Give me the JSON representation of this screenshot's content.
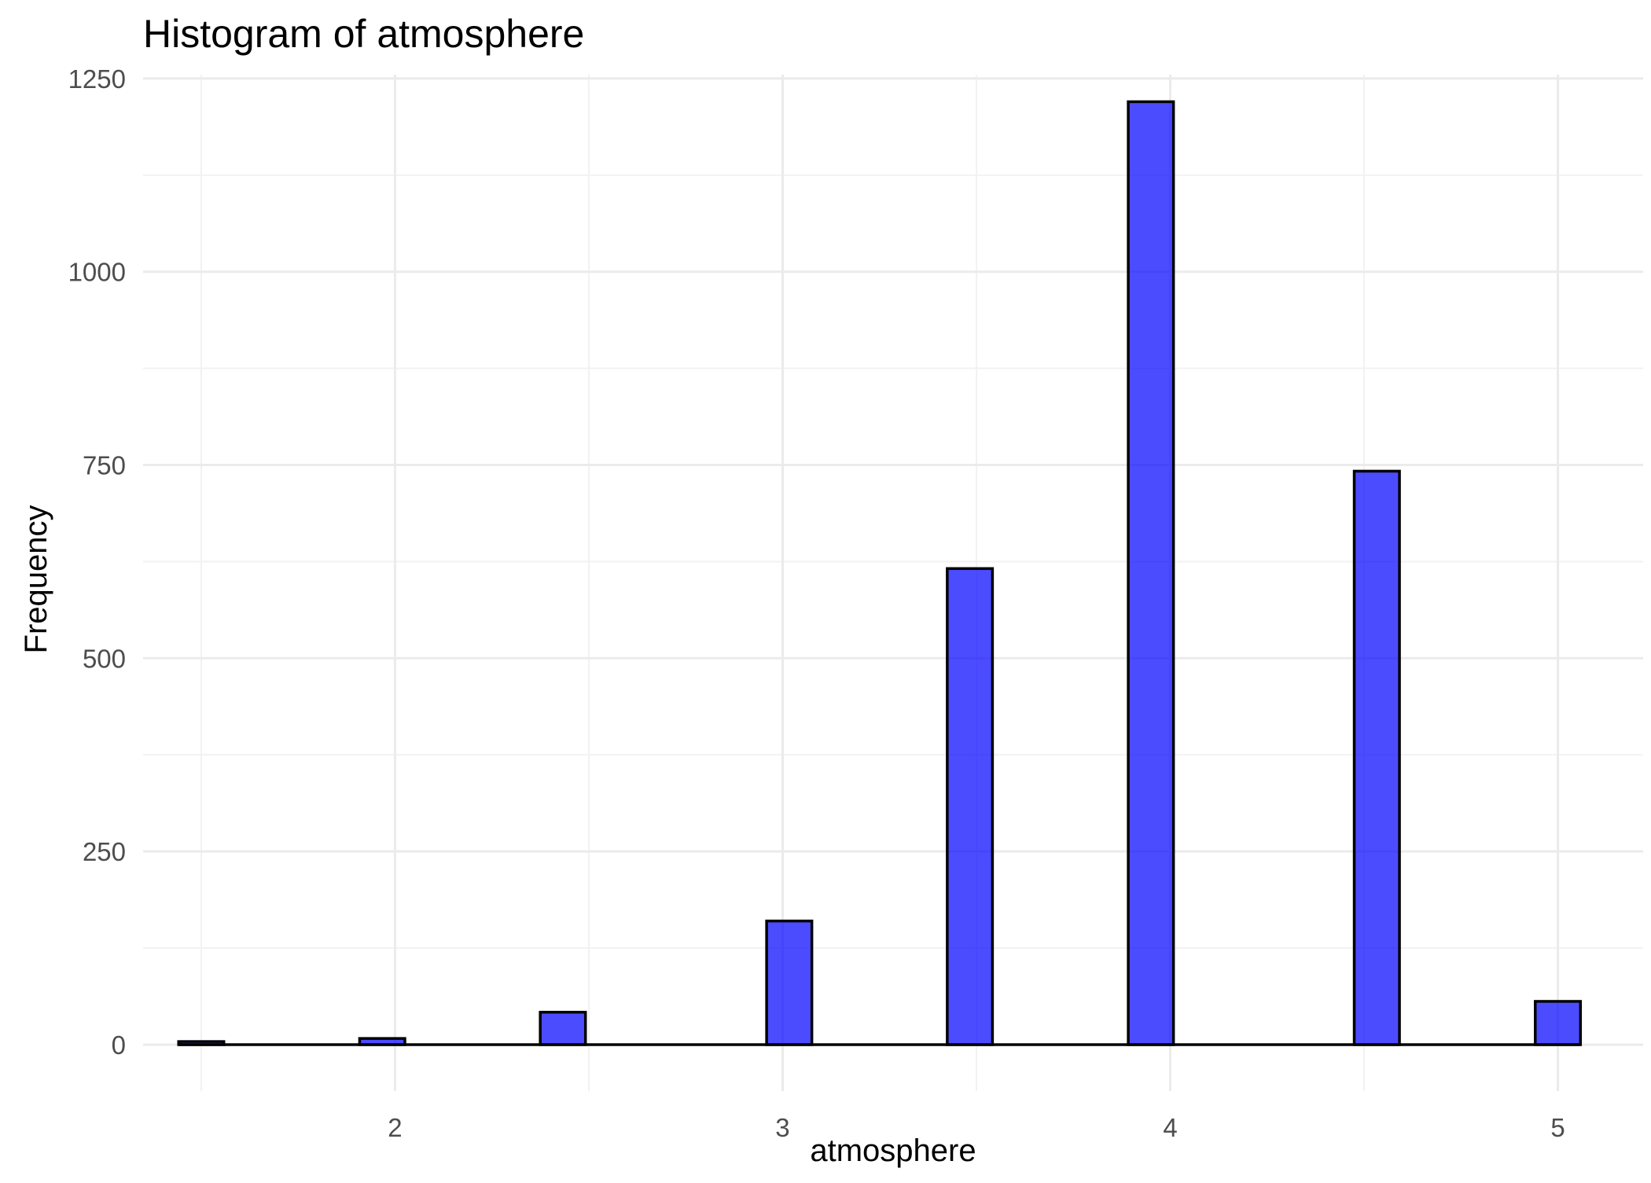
{
  "chart_data": {
    "type": "bar",
    "title": "Histogram of atmosphere",
    "xlabel": "atmosphere",
    "ylabel": "Frequency",
    "xlim": [
      1.35,
      5.22
    ],
    "ylim": [
      -60,
      1255
    ],
    "x_ticks": [
      2,
      3,
      4,
      5
    ],
    "x_tick_labels": [
      "2",
      "3",
      "4",
      "5"
    ],
    "y_ticks": [
      0,
      250,
      500,
      750,
      1000,
      1250
    ],
    "y_tick_labels": [
      "0",
      "250",
      "500",
      "750",
      "1000",
      "1250"
    ],
    "x_minor_ticks": [
      1.5,
      2.5,
      3.5,
      4.5
    ],
    "y_minor_ticks": [
      125,
      375,
      625,
      875,
      1125
    ],
    "grid": true,
    "legend": "none",
    "bin_width": 0.1167,
    "bins": [
      {
        "x": 1.5,
        "count": 4
      },
      {
        "x": 1.967,
        "count": 8
      },
      {
        "x": 2.433,
        "count": 42
      },
      {
        "x": 3.017,
        "count": 160
      },
      {
        "x": 3.483,
        "count": 616
      },
      {
        "x": 3.95,
        "count": 1220
      },
      {
        "x": 4.533,
        "count": 742
      },
      {
        "x": 5.0,
        "count": 56
      }
    ],
    "baseline_range": [
      1.442,
      5.058
    ],
    "colors": {
      "fill": "#0000ff",
      "fill_opacity": 0.7,
      "outline": "#000000"
    }
  }
}
